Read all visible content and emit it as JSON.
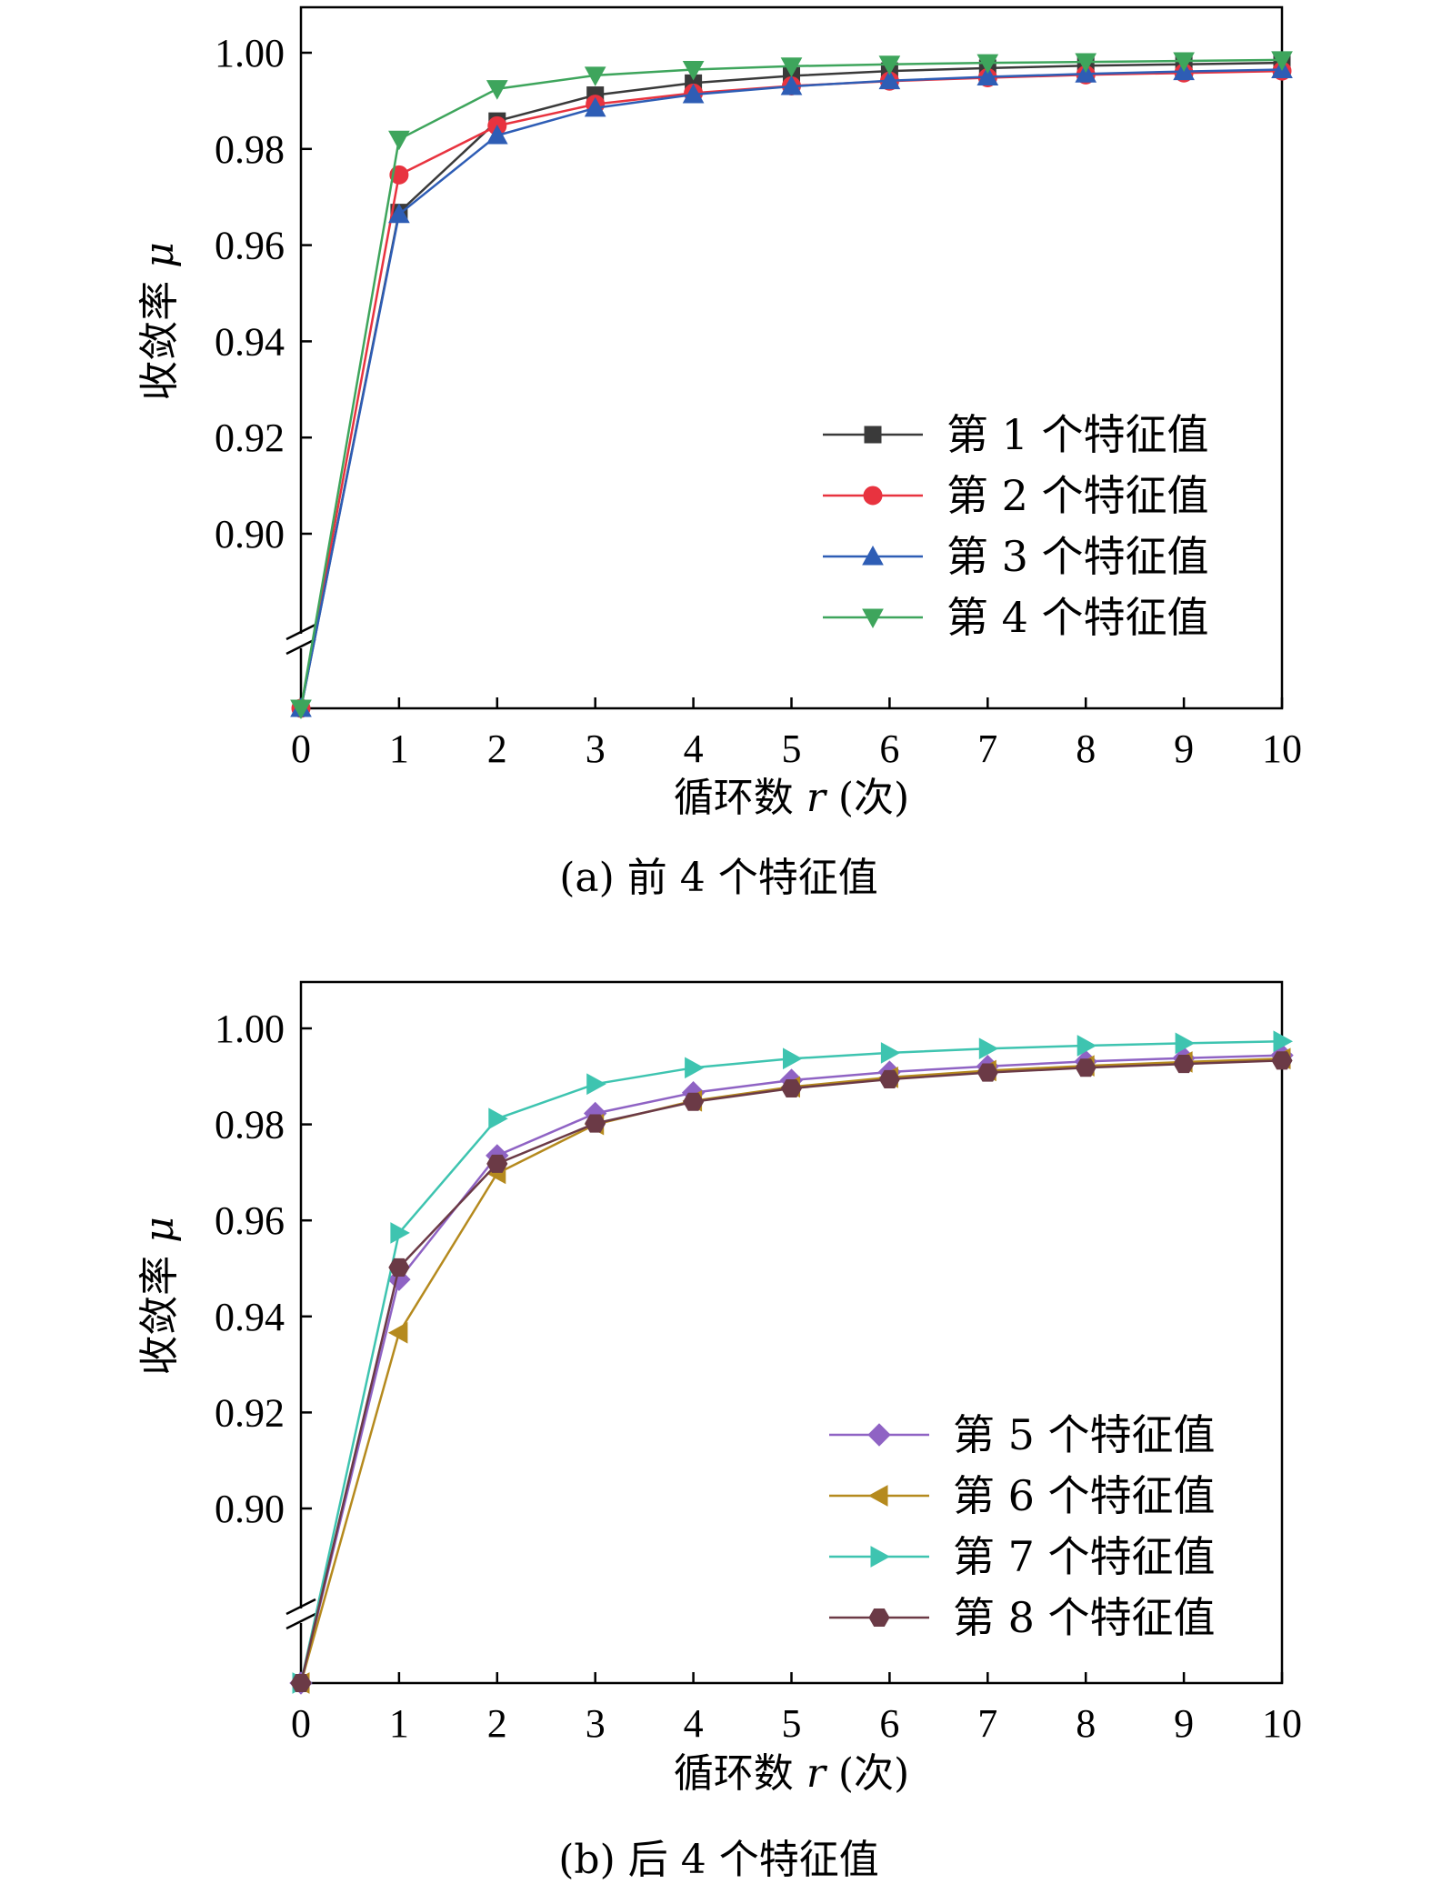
{
  "chart_data": [
    {
      "type": "line",
      "caption": "(a) 前 4 个特征值",
      "xlabel_text": "循环数",
      "xlabel_var": "r",
      "xlabel_unit": "(次)",
      "ylabel_text": "收敛率",
      "ylabel_var": "μ",
      "x": [
        0,
        1,
        2,
        3,
        4,
        5,
        6,
        7,
        8,
        9,
        10
      ],
      "xlim": [
        0,
        10
      ],
      "ylim": [
        0.9,
        1.01
      ],
      "y_break": true,
      "y_break_bottom_value": 0.0,
      "yticks": [
        "0.90",
        "0.92",
        "0.94",
        "0.96",
        "0.98",
        "1.00"
      ],
      "ytick_values": [
        0.9,
        0.92,
        0.94,
        0.96,
        0.98,
        1.0
      ],
      "xticks": [
        "0",
        "1",
        "2",
        "3",
        "4",
        "5",
        "6",
        "7",
        "8",
        "9",
        "10"
      ],
      "grid": false,
      "legend_position": "right-middle",
      "series": [
        {
          "name": "第 1 个特征值",
          "color": "#3a3a3a",
          "marker": "square",
          "values": [
            0.0,
            0.9668,
            0.9858,
            0.9912,
            0.9937,
            0.9952,
            0.9962,
            0.9968,
            0.9973,
            0.9976,
            0.9979
          ]
        },
        {
          "name": "第 2 个特征值",
          "color": "#e8333f",
          "marker": "circle",
          "values": [
            0.0,
            0.9746,
            0.9848,
            0.9893,
            0.9916,
            0.9931,
            0.9941,
            0.9948,
            0.9954,
            0.9958,
            0.9962
          ]
        },
        {
          "name": "第 3 个特征值",
          "color": "#2e5db5",
          "marker": "triangle-up",
          "values": [
            0.0,
            0.9664,
            0.9828,
            0.9885,
            0.9913,
            0.993,
            0.9942,
            0.995,
            0.9956,
            0.9961,
            0.9965
          ]
        },
        {
          "name": "第 4 个特征值",
          "color": "#3ea55c",
          "marker": "triangle-down",
          "values": [
            0.0,
            0.982,
            0.9925,
            0.9953,
            0.9965,
            0.9972,
            0.9976,
            0.9979,
            0.9981,
            0.9983,
            0.9985
          ]
        }
      ]
    },
    {
      "type": "line",
      "caption": "(b) 后 4 个特征值",
      "xlabel_text": "循环数",
      "xlabel_var": "r",
      "xlabel_unit": "(次)",
      "ylabel_text": "收敛率",
      "ylabel_var": "μ",
      "x": [
        0,
        1,
        2,
        3,
        4,
        5,
        6,
        7,
        8,
        9,
        10
      ],
      "xlim": [
        0,
        10
      ],
      "ylim": [
        0.9,
        1.01
      ],
      "y_break": true,
      "y_break_bottom_value": 0.0,
      "yticks": [
        "0.90",
        "0.92",
        "0.94",
        "0.96",
        "0.98",
        "1.00"
      ],
      "ytick_values": [
        0.9,
        0.92,
        0.94,
        0.96,
        0.98,
        1.0
      ],
      "xticks": [
        "0",
        "1",
        "2",
        "3",
        "4",
        "5",
        "6",
        "7",
        "8",
        "9",
        "10"
      ],
      "grid": false,
      "legend_position": "right-bottom",
      "series": [
        {
          "name": "第 5 个特征值",
          "color": "#8f63c4",
          "marker": "diamond",
          "values": [
            0.0,
            0.9477,
            0.9735,
            0.9823,
            0.9866,
            0.9892,
            0.9909,
            0.9921,
            0.9931,
            0.9938,
            0.9944
          ]
        },
        {
          "name": "第 6 个特征值",
          "color": "#b58a1e",
          "marker": "triangle-left",
          "values": [
            0.0,
            0.9366,
            0.9698,
            0.98,
            0.9849,
            0.9878,
            0.9898,
            0.9912,
            0.9922,
            0.993,
            0.9937
          ]
        },
        {
          "name": "第 7 个特征值",
          "color": "#3ec4b0",
          "marker": "triangle-right",
          "values": [
            0.0,
            0.9574,
            0.9812,
            0.9884,
            0.9918,
            0.9937,
            0.9949,
            0.9958,
            0.9964,
            0.9969,
            0.9973
          ]
        },
        {
          "name": "第 8 个特征值",
          "color": "#6b3a46",
          "marker": "hexagon",
          "values": [
            0.0,
            0.9502,
            0.9718,
            0.9802,
            0.9847,
            0.9875,
            0.9894,
            0.9908,
            0.9918,
            0.9926,
            0.9933
          ]
        }
      ]
    }
  ]
}
